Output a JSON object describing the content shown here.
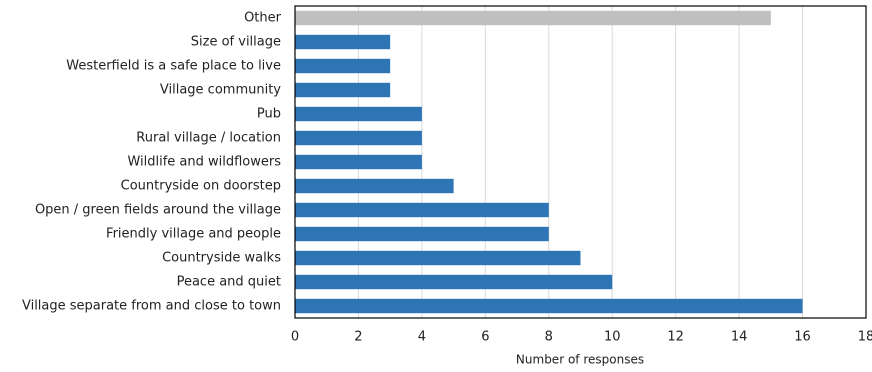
{
  "chart_data": {
    "type": "barh",
    "categories": [
      "Other",
      "Size of village",
      "Westerfield is a safe place to live",
      "Village community",
      "Pub",
      "Rural village / location",
      "Wildlife and wildflowers",
      "Countryside on doorstep",
      "Open / green fields around the village",
      "Friendly village and people",
      "Countryside walks",
      "Peace and quiet",
      "Village separate from and close to town"
    ],
    "values": [
      15,
      3,
      3,
      3,
      4,
      4,
      4,
      5,
      8,
      8,
      9,
      10,
      16
    ],
    "colors": [
      "#bfbfbf",
      "#2e75b6",
      "#2e75b6",
      "#2e75b6",
      "#2e75b6",
      "#2e75b6",
      "#2e75b6",
      "#2e75b6",
      "#2e75b6",
      "#2e75b6",
      "#2e75b6",
      "#2e75b6",
      "#2e75b6"
    ],
    "xlabel": "Number of responses",
    "xlim": [
      0,
      18
    ],
    "xticks": [
      0,
      2,
      4,
      6,
      8,
      10,
      12,
      14,
      16,
      18
    ],
    "grid": true
  }
}
